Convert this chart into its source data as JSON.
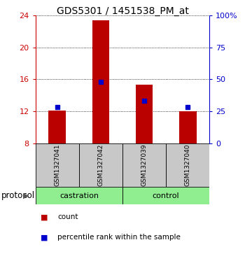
{
  "title": "GDS5301 / 1451538_PM_at",
  "samples": [
    "GSM1327041",
    "GSM1327042",
    "GSM1327039",
    "GSM1327040"
  ],
  "bar_bottom": 8,
  "bar_tops": [
    12.1,
    23.35,
    15.3,
    12.05
  ],
  "percentile_values": [
    12.55,
    15.72,
    13.32,
    12.58
  ],
  "ylim_left": [
    8,
    24
  ],
  "ylim_right": [
    0,
    100
  ],
  "yticks_left": [
    8,
    12,
    16,
    20,
    24
  ],
  "yticks_right": [
    0,
    25,
    50,
    75,
    100
  ],
  "bar_color": "#BB0000",
  "marker_color": "#0000CC",
  "bar_width": 0.4,
  "left_axis_color": "#CC0000",
  "right_axis_color": "#0000CC",
  "label_area_color": "#C8C8C8",
  "protocol_area_color": "#90EE90",
  "title_fontsize": 10,
  "tick_fontsize": 8,
  "sample_fontsize": 6.5,
  "proto_fontsize": 8,
  "legend_fontsize": 7.5
}
